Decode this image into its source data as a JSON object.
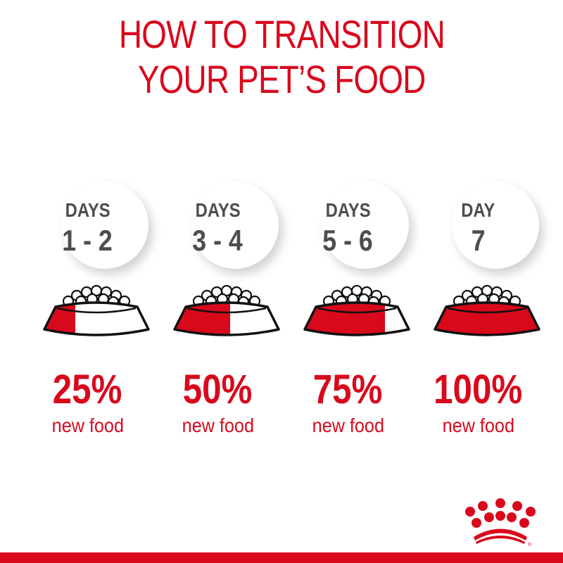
{
  "title": {
    "line1": "HOW TO TRANSITION",
    "line2": "YOUR PET’S FOOD"
  },
  "steps": [
    {
      "label": "DAYS",
      "range": "1 - 2",
      "percent": "25%",
      "fraction": 0.25,
      "caption": "new food"
    },
    {
      "label": "DAYS",
      "range": "3 - 4",
      "percent": "50%",
      "fraction": 0.5,
      "caption": "new food"
    },
    {
      "label": "DAYS",
      "range": "5 - 6",
      "percent": "75%",
      "fraction": 0.75,
      "caption": "new food"
    },
    {
      "label": "DAY",
      "range": "7",
      "percent": "100%",
      "fraction": 1.0,
      "caption": "new food"
    }
  ],
  "colors": {
    "brand_red": "#d9091c",
    "text_gray": "#4d4d4d"
  },
  "logo": {
    "icon": "crown-icon",
    "mark": "®"
  }
}
